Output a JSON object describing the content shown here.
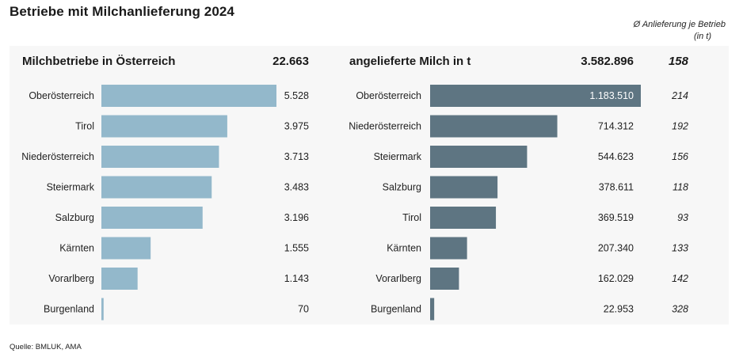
{
  "title": "Betriebe mit Milchanlieferung 2024",
  "avg_note": {
    "line1": "Ø Anlieferung je Betrieb",
    "line2": "(in t)"
  },
  "source": "Quelle: BMLUK, AMA",
  "colors": {
    "left_bar": "#93b8cb",
    "right_bar": "#5e7582",
    "panel_bg": "#f7f7f7"
  },
  "chart_data": [
    {
      "type": "bar",
      "orientation": "horizontal",
      "title": "Milchbetriebe in Österreich",
      "total": "22.663",
      "categories": [
        "Oberösterreich",
        "Tirol",
        "Niederösterreich",
        "Steiermark",
        "Salzburg",
        "Kärnten",
        "Vorarlberg",
        "Burgenland"
      ],
      "values": [
        5528,
        3975,
        3713,
        3483,
        3196,
        1555,
        1143,
        70
      ],
      "labels": [
        "5.528",
        "3.975",
        "3.713",
        "3.483",
        "3.196",
        "1.555",
        "1.143",
        "70"
      ]
    },
    {
      "type": "bar",
      "orientation": "horizontal",
      "title": "angelieferte Milch in t",
      "total": "3.582.896",
      "total_avg": "158",
      "categories": [
        "Oberösterreich",
        "Niederösterreich",
        "Steiermark",
        "Salzburg",
        "Tirol",
        "Kärnten",
        "Vorarlberg",
        "Burgenland"
      ],
      "values": [
        1183510,
        714312,
        544623,
        378611,
        369519,
        207340,
        162029,
        22953
      ],
      "labels": [
        "1.183.510",
        "714.312",
        "544.623",
        "378.611",
        "369.519",
        "207.340",
        "162.029",
        "22.953"
      ],
      "avg_per_farm": [
        "214",
        "192",
        "156",
        "118",
        "93",
        "133",
        "142",
        "328"
      ]
    }
  ]
}
